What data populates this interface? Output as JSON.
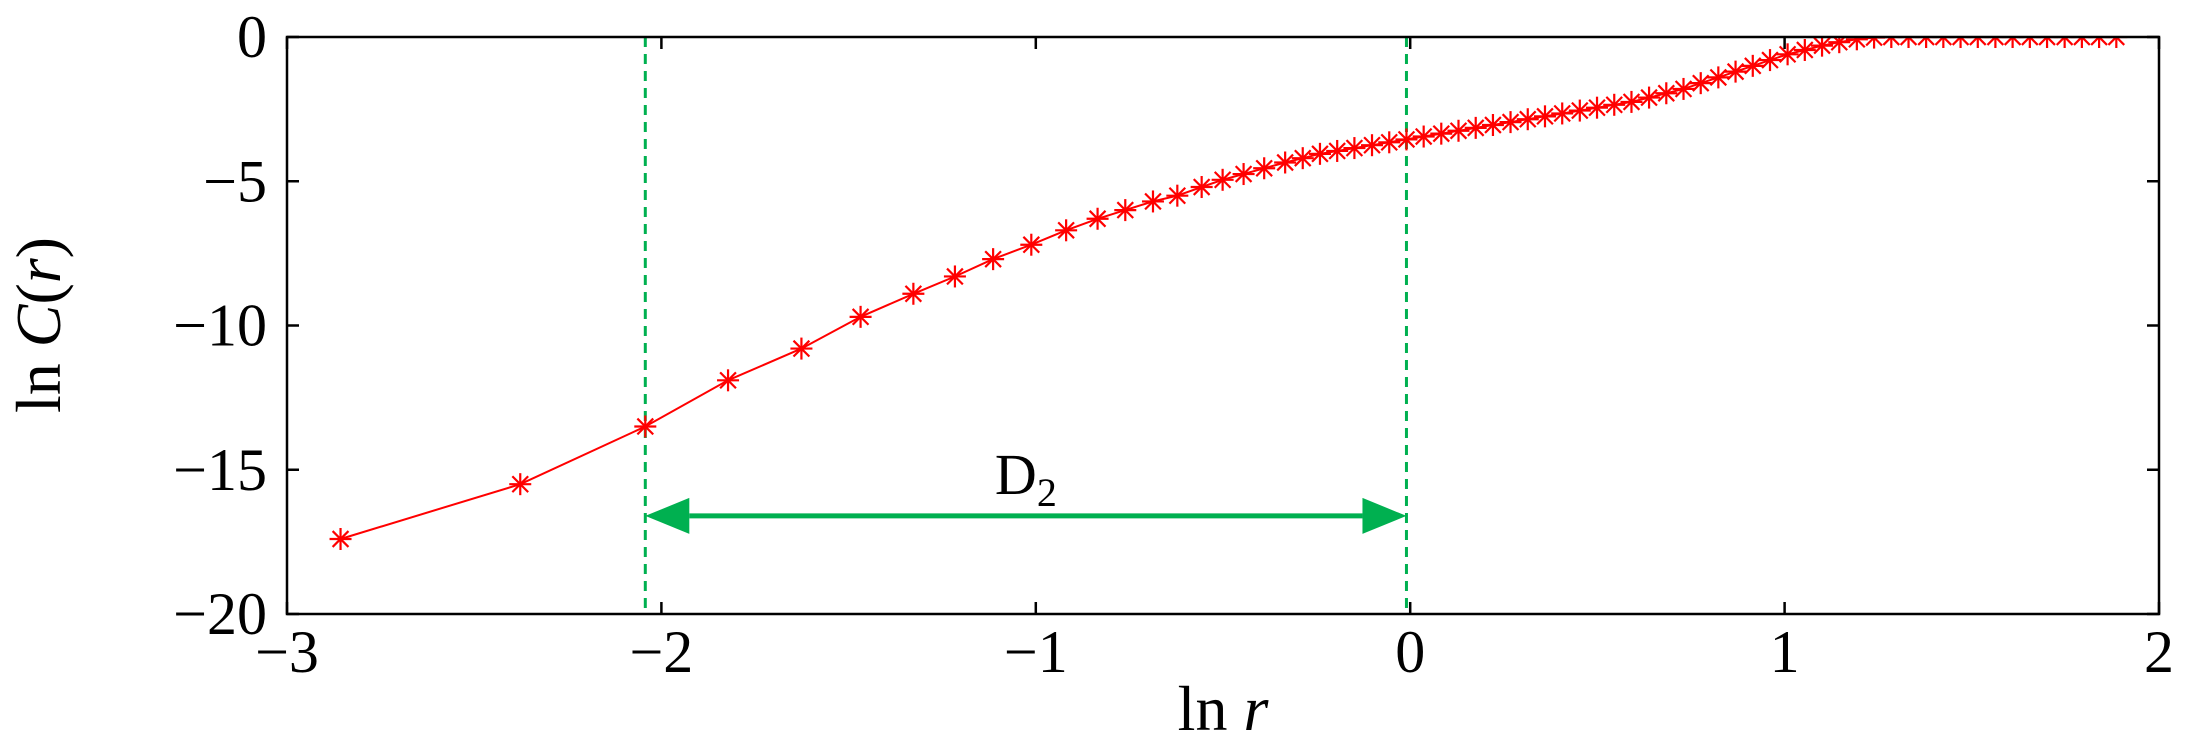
{
  "chart_data": {
    "type": "line",
    "title": "",
    "xlabel": {
      "prefix": "ln",
      "var": "r"
    },
    "ylabel": {
      "prefix": "ln",
      "func": "C",
      "var": "r"
    },
    "xlim": [
      -3,
      2
    ],
    "ylim": [
      -20,
      0
    ],
    "xticks": [
      -3,
      -2,
      -1,
      0,
      1,
      2
    ],
    "yticks": [
      0,
      -5,
      -10,
      -15,
      -20
    ],
    "xtick_labels": [
      "−3",
      "−2",
      "−1",
      "0",
      "1",
      "2"
    ],
    "ytick_labels": [
      "0",
      "−5",
      "−10",
      "−15",
      "−20"
    ],
    "grid": false,
    "legend": "none",
    "series": [
      {
        "color": "#ff0000",
        "marker": "asterisk",
        "x": [
          -2.857,
          -2.377,
          -2.043,
          -1.822,
          -1.626,
          -1.468,
          -1.327,
          -1.216,
          -1.114,
          -1.012,
          -0.919,
          -0.835,
          -0.761,
          -0.687,
          -0.622,
          -0.557,
          -0.501,
          -0.445,
          -0.39,
          -0.334,
          -0.287,
          -0.241,
          -0.195,
          -0.149,
          -0.102,
          -0.056,
          -0.01,
          0.036,
          0.083,
          0.129,
          0.175,
          0.221,
          0.268,
          0.314,
          0.36,
          0.406,
          0.453,
          0.499,
          0.545,
          0.591,
          0.638,
          0.684,
          0.73,
          0.776,
          0.823,
          0.869,
          0.915,
          0.961,
          1.008,
          1.054,
          1.1,
          1.146,
          1.193,
          1.239,
          1.285,
          1.331,
          1.378,
          1.424,
          1.47,
          1.516,
          1.563,
          1.609,
          1.655,
          1.701,
          1.748,
          1.794,
          1.84,
          1.886
        ],
        "y": [
          -17.4,
          -15.5,
          -13.5,
          -11.9,
          -10.8,
          -9.7,
          -8.9,
          -8.3,
          -7.7,
          -7.2,
          -6.7,
          -6.3,
          -6.0,
          -5.7,
          -5.5,
          -5.2,
          -4.95,
          -4.75,
          -4.55,
          -4.35,
          -4.2,
          -4.05,
          -3.95,
          -3.85,
          -3.75,
          -3.65,
          -3.55,
          -3.45,
          -3.35,
          -3.25,
          -3.15,
          -3.05,
          -2.95,
          -2.85,
          -2.75,
          -2.65,
          -2.55,
          -2.45,
          -2.35,
          -2.25,
          -2.1,
          -1.95,
          -1.8,
          -1.6,
          -1.4,
          -1.2,
          -1.0,
          -0.8,
          -0.6,
          -0.45,
          -0.3,
          -0.18,
          -0.08,
          -0.02,
          0.0,
          0.0,
          0.0,
          0.0,
          0.0,
          0.0,
          0.0,
          0.0,
          0.0,
          0.0,
          0.0,
          0.0,
          0.0,
          0.0
        ]
      }
    ],
    "annotations": {
      "vlines": {
        "x": [
          -2.043,
          -0.01
        ],
        "color": "#00b050",
        "style": "dashed"
      },
      "arrow": {
        "from": -2.043,
        "to": -0.01,
        "y": -16.6,
        "color": "#00b050",
        "label": "D",
        "label_sub": "2"
      }
    }
  }
}
